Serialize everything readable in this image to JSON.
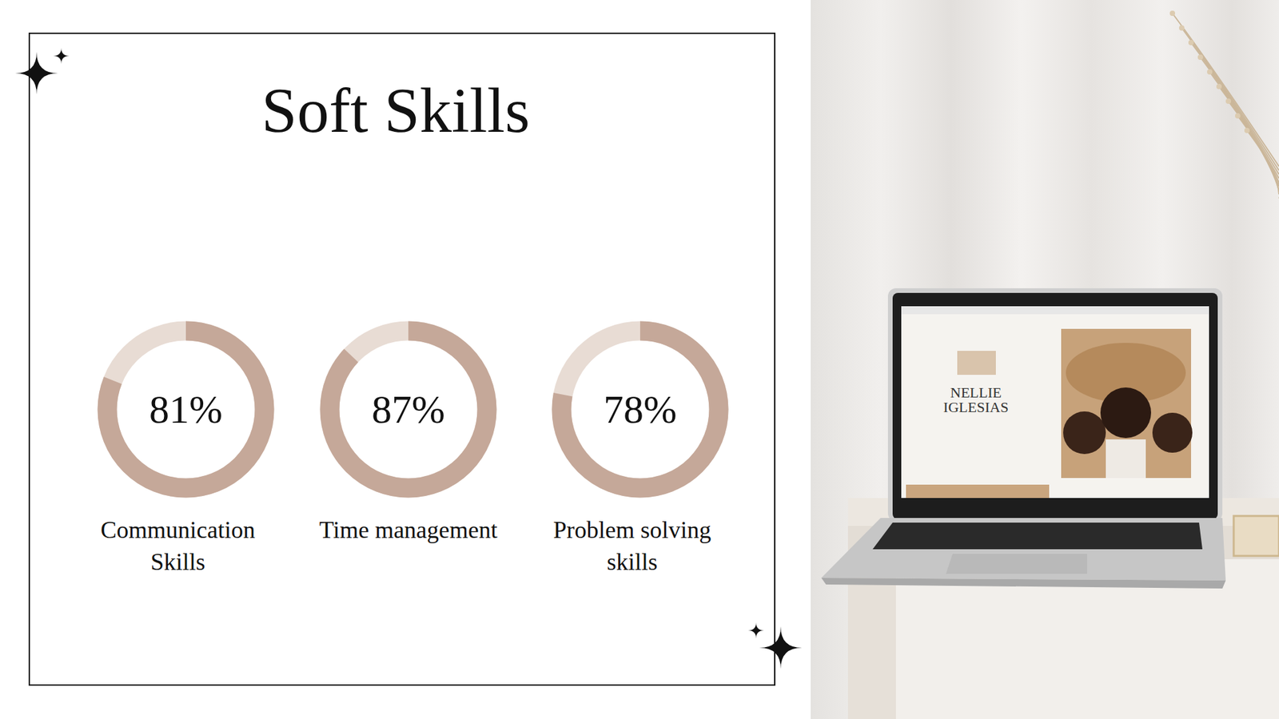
{
  "slide": {
    "title": "Soft Skills"
  },
  "chart_data": [
    {
      "type": "donut",
      "categories": [
        "Communication Skills"
      ],
      "values": [
        81
      ],
      "value_labels": [
        "81%"
      ],
      "ylim": [
        0,
        100
      ],
      "color": "#c5a899",
      "data_labels": true
    },
    {
      "type": "donut",
      "categories": [
        "Time management"
      ],
      "values": [
        87
      ],
      "value_labels": [
        "87%"
      ],
      "ylim": [
        0,
        100
      ],
      "color": "#c5a899",
      "data_labels": true
    },
    {
      "type": "donut",
      "categories": [
        "Problem solving skills"
      ],
      "values": [
        78
      ],
      "value_labels": [
        "78%"
      ],
      "ylim": [
        0,
        100
      ],
      "color": "#c5a899",
      "data_labels": true
    }
  ],
  "photo": {
    "screen_name": "NELLIE IGLESIAS"
  }
}
